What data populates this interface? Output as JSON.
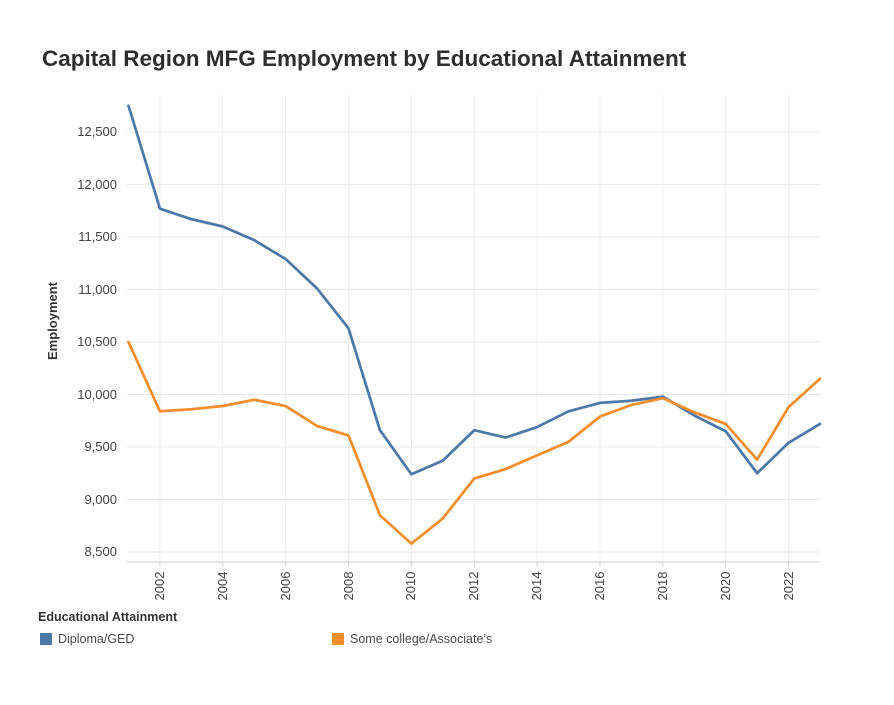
{
  "title": "Capital Region MFG Employment by Educational Attainment",
  "chart_data": {
    "type": "line",
    "title": "Capital Region MFG Employment by Educational Attainment",
    "xlabel": "",
    "ylabel": "Employment",
    "grid": true,
    "legend_position": "bottom-left",
    "ylim": [
      8380,
      12850
    ],
    "x": [
      2001,
      2002,
      2003,
      2004,
      2005,
      2006,
      2007,
      2008,
      2009,
      2010,
      2011,
      2012,
      2013,
      2014,
      2015,
      2016,
      2017,
      2018,
      2019,
      2020,
      2021,
      2022,
      2023
    ],
    "xticks": [
      2002,
      2004,
      2006,
      2008,
      2010,
      2012,
      2014,
      2016,
      2018,
      2020,
      2022
    ],
    "xtick_labels": [
      "2002",
      "2004",
      "2006",
      "2008",
      "2010",
      "2012",
      "2014",
      "2016",
      "2018",
      "2020",
      "2022"
    ],
    "yticks": [
      8500,
      9000,
      9500,
      10000,
      10500,
      11000,
      11500,
      12000,
      12500
    ],
    "ytick_labels": [
      "8,500",
      "9,000",
      "9,500",
      "10,000",
      "10,500",
      "11,000",
      "11,500",
      "12,000",
      "12,500"
    ],
    "series": [
      {
        "name": "Diploma/GED",
        "color": "#4E79A7",
        "values": [
          12750,
          11770,
          11670,
          11600,
          11470,
          11290,
          11010,
          10630,
          9660,
          9240,
          9370,
          9660,
          9590,
          9690,
          9840,
          9920,
          9940,
          9980,
          9800,
          9650,
          9250,
          9540,
          9720
        ]
      },
      {
        "name": "Some college/Associate’s",
        "color": "#F28E2B",
        "values": [
          10500,
          9840,
          9860,
          9890,
          9950,
          9890,
          9700,
          9610,
          8850,
          8580,
          8820,
          9200,
          9290,
          9420,
          9550,
          9790,
          9900,
          9965,
          9830,
          9720,
          9380,
          9880,
          10150
        ]
      }
    ]
  },
  "legend": {
    "title": "Educational Attainment",
    "items": [
      {
        "label": "Diploma/GED",
        "color": "#4E79A7"
      },
      {
        "label": "Some college/Associate’s",
        "color": "#F28E2B"
      }
    ]
  },
  "colors": {
    "gridline": "#e8e8e8",
    "v_gridline": "#ececec",
    "axis_line": "#d4d4d4",
    "tick_text": "#434343"
  }
}
